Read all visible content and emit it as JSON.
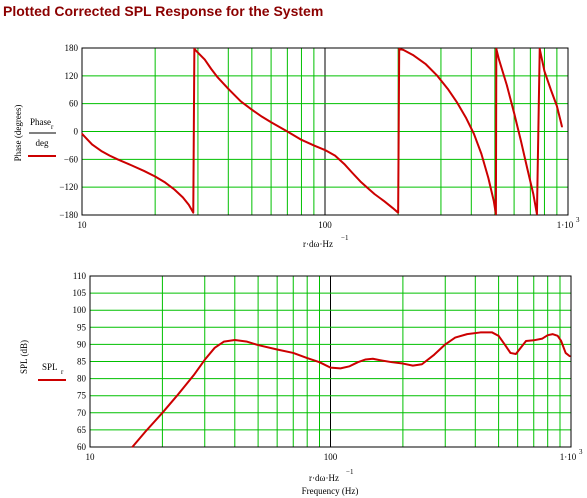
{
  "page": {
    "title": "Plotted Corrected SPL Response for the System"
  },
  "colors": {
    "grid": "#00c000",
    "trace": "#cc0000",
    "frame": "#000000",
    "title": "#8b0000"
  },
  "chart_data": [
    {
      "type": "line",
      "x_scale": "log",
      "xlim": [
        10,
        1000
      ],
      "ylim": [
        -180,
        180
      ],
      "grid": true,
      "yticks": [
        180,
        120,
        60,
        0,
        -60,
        -120,
        -180
      ],
      "xtick_labels": [
        "10",
        "100",
        "1·10"
      ],
      "xtick_exp": "3",
      "ylabel": "Phase (degrees)",
      "legend_line1": "Phase",
      "legend_sub": "r",
      "legend_line2": "deg",
      "xlabel_main": "r·dω·Hz",
      "xlabel_exp": "−1",
      "series": [
        {
          "values": [
            [
              10,
              -5
            ],
            [
              11,
              -28
            ],
            [
              12,
              -42
            ],
            [
              13,
              -52
            ],
            [
              14,
              -60
            ],
            [
              16,
              -73
            ],
            [
              18,
              -85
            ],
            [
              20,
              -97
            ],
            [
              22,
              -110
            ],
            [
              24,
              -125
            ],
            [
              26,
              -142
            ],
            [
              27.5,
              -158
            ],
            [
              28.7,
              -175
            ],
            [
              29,
              178
            ],
            [
              30,
              170
            ],
            [
              32,
              155
            ],
            [
              34,
              135
            ],
            [
              36,
              118
            ],
            [
              40,
              92
            ],
            [
              45,
              65
            ],
            [
              50,
              47
            ],
            [
              55,
              32
            ],
            [
              60,
              20
            ],
            [
              70,
              0
            ],
            [
              80,
              -18
            ],
            [
              90,
              -30
            ],
            [
              100,
              -40
            ],
            [
              110,
              -52
            ],
            [
              120,
              -70
            ],
            [
              130,
              -90
            ],
            [
              140,
              -108
            ],
            [
              150,
              -122
            ],
            [
              160,
              -135
            ],
            [
              175,
              -150
            ],
            [
              190,
              -165
            ],
            [
              200,
              -175
            ],
            [
              202,
              178
            ],
            [
              210,
              176
            ],
            [
              230,
              165
            ],
            [
              260,
              145
            ],
            [
              290,
              120
            ],
            [
              320,
              92
            ],
            [
              350,
              62
            ],
            [
              380,
              30
            ],
            [
              410,
              -5
            ],
            [
              440,
              -48
            ],
            [
              470,
              -100
            ],
            [
              495,
              -150
            ],
            [
              505,
              -178
            ],
            [
              507,
              178
            ],
            [
              520,
              155
            ],
            [
              560,
              100
            ],
            [
              600,
              40
            ],
            [
              640,
              -20
            ],
            [
              680,
              -80
            ],
            [
              720,
              -135
            ],
            [
              745,
              -178
            ],
            [
              765,
              178
            ],
            [
              800,
              130
            ],
            [
              850,
              90
            ],
            [
              900,
              55
            ],
            [
              930,
              25
            ],
            [
              945,
              10
            ]
          ]
        }
      ]
    },
    {
      "type": "line",
      "x_scale": "log",
      "xlim": [
        10,
        1000
      ],
      "ylim": [
        60,
        110
      ],
      "grid": true,
      "yticks": [
        110,
        105,
        100,
        95,
        90,
        85,
        80,
        75,
        70,
        65,
        60
      ],
      "xtick_labels": [
        "10",
        "100",
        "1·10"
      ],
      "xtick_exp": "3",
      "ylabel": "SPL (dB)",
      "legend_line1": "SPL",
      "legend_sub": "r",
      "xlabel_main": "r·dω·Hz",
      "xlabel_exp": "−1",
      "xlabel2": "Frequency (Hz)",
      "series": [
        {
          "values": [
            [
              15,
              60
            ],
            [
              17,
              64.5
            ],
            [
              20,
              70
            ],
            [
              23,
              75
            ],
            [
              27,
              81
            ],
            [
              30,
              85.5
            ],
            [
              33,
              89
            ],
            [
              36,
              90.8
            ],
            [
              40,
              91.3
            ],
            [
              45,
              90.8
            ],
            [
              50,
              89.8
            ],
            [
              60,
              88.5
            ],
            [
              70,
              87.5
            ],
            [
              80,
              86
            ],
            [
              90,
              84.8
            ],
            [
              100,
              83.2
            ],
            [
              110,
              83
            ],
            [
              120,
              83.6
            ],
            [
              130,
              84.8
            ],
            [
              140,
              85.6
            ],
            [
              150,
              85.8
            ],
            [
              160,
              85.4
            ],
            [
              180,
              84.8
            ],
            [
              200,
              84.4
            ],
            [
              220,
              83.8
            ],
            [
              240,
              84.2
            ],
            [
              270,
              87
            ],
            [
              300,
              90
            ],
            [
              330,
              92
            ],
            [
              370,
              93
            ],
            [
              420,
              93.5
            ],
            [
              470,
              93.5
            ],
            [
              500,
              92.5
            ],
            [
              530,
              90
            ],
            [
              560,
              87.5
            ],
            [
              590,
              87.2
            ],
            [
              610,
              88.5
            ],
            [
              650,
              91
            ],
            [
              700,
              91.2
            ],
            [
              760,
              91.7
            ],
            [
              800,
              92.7
            ],
            [
              840,
              93
            ],
            [
              880,
              92.5
            ],
            [
              910,
              91
            ],
            [
              950,
              87.5
            ],
            [
              990,
              86.5
            ]
          ]
        }
      ]
    }
  ]
}
